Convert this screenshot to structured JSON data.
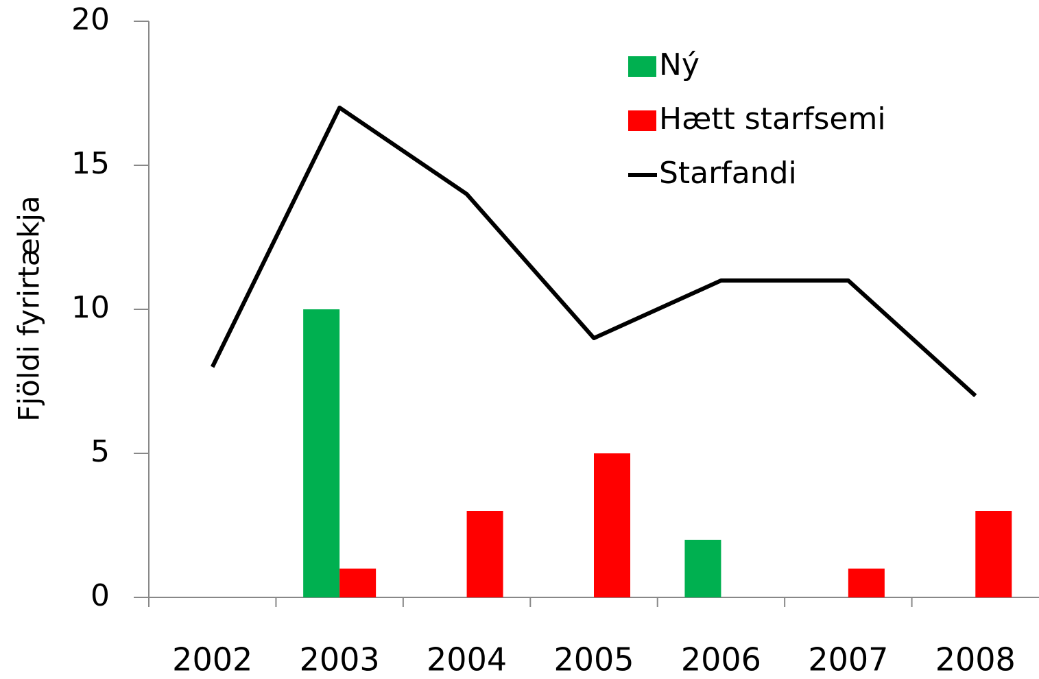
{
  "chart_data": {
    "type": "bar",
    "y_label": "Fjöldi fyrirtækja",
    "categories": [
      "2002",
      "2003",
      "2004",
      "2005",
      "2006",
      "2007",
      "2008"
    ],
    "series": [
      {
        "name": "Ný",
        "color": "#00b050",
        "type": "bar",
        "values": [
          0,
          10,
          0,
          0,
          2,
          0,
          0
        ]
      },
      {
        "name": "Hætt starfsemi",
        "color": "#ff0000",
        "type": "bar",
        "values": [
          0,
          1,
          3,
          5,
          0,
          1,
          3
        ]
      },
      {
        "name": "Starfandi",
        "color": "#000000",
        "type": "line",
        "values": [
          8,
          17,
          14,
          9,
          11,
          11,
          7
        ]
      }
    ],
    "ylim": [
      0,
      20
    ],
    "yticks": [
      0,
      5,
      10,
      15,
      20
    ],
    "grid": false,
    "legend": "top-right"
  }
}
